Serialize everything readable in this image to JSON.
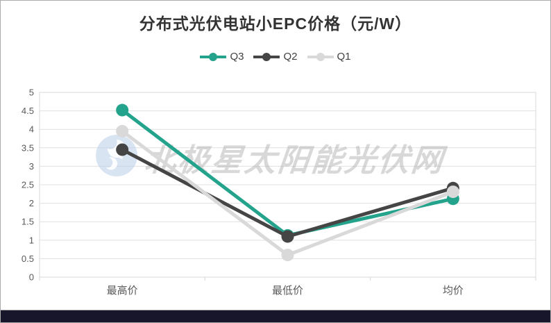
{
  "page": {
    "footer_color": "#17162b",
    "border_color": "#ababab",
    "background": "#ffffff"
  },
  "chart": {
    "title": "分布式光伏电站小EPC价格（元/W）"
  },
  "watermark": {
    "text": "北极星太阳能光伏网",
    "logo_color": "#b9cde9",
    "text_color": "#a8a8a8"
  },
  "chart_data": {
    "type": "line",
    "title": "分布式光伏电站小EPC价格（元/W）",
    "categories": [
      "最高价",
      "最低价",
      "均价"
    ],
    "series": [
      {
        "name": "Q3",
        "color": "#23a38b",
        "values": [
          4.52,
          1.13,
          2.12
        ]
      },
      {
        "name": "Q2",
        "color": "#454545",
        "values": [
          3.45,
          1.1,
          2.41
        ]
      },
      {
        "name": "Q1",
        "color": "#d9d9d9",
        "values": [
          3.95,
          0.6,
          2.31
        ]
      }
    ],
    "xlabel": "",
    "ylabel": "",
    "ylim": [
      0,
      5
    ],
    "yticks": [
      0,
      0.5,
      1,
      1.5,
      2,
      2.5,
      3,
      3.5,
      4,
      4.5,
      5
    ],
    "grid": true,
    "gridline_color": "#e0e0e0",
    "frame_color": "#d9d9d9",
    "axis_label_color": "#595959",
    "legend_position": "top",
    "marker": "circle",
    "line_width": 5,
    "marker_radius": 9
  }
}
